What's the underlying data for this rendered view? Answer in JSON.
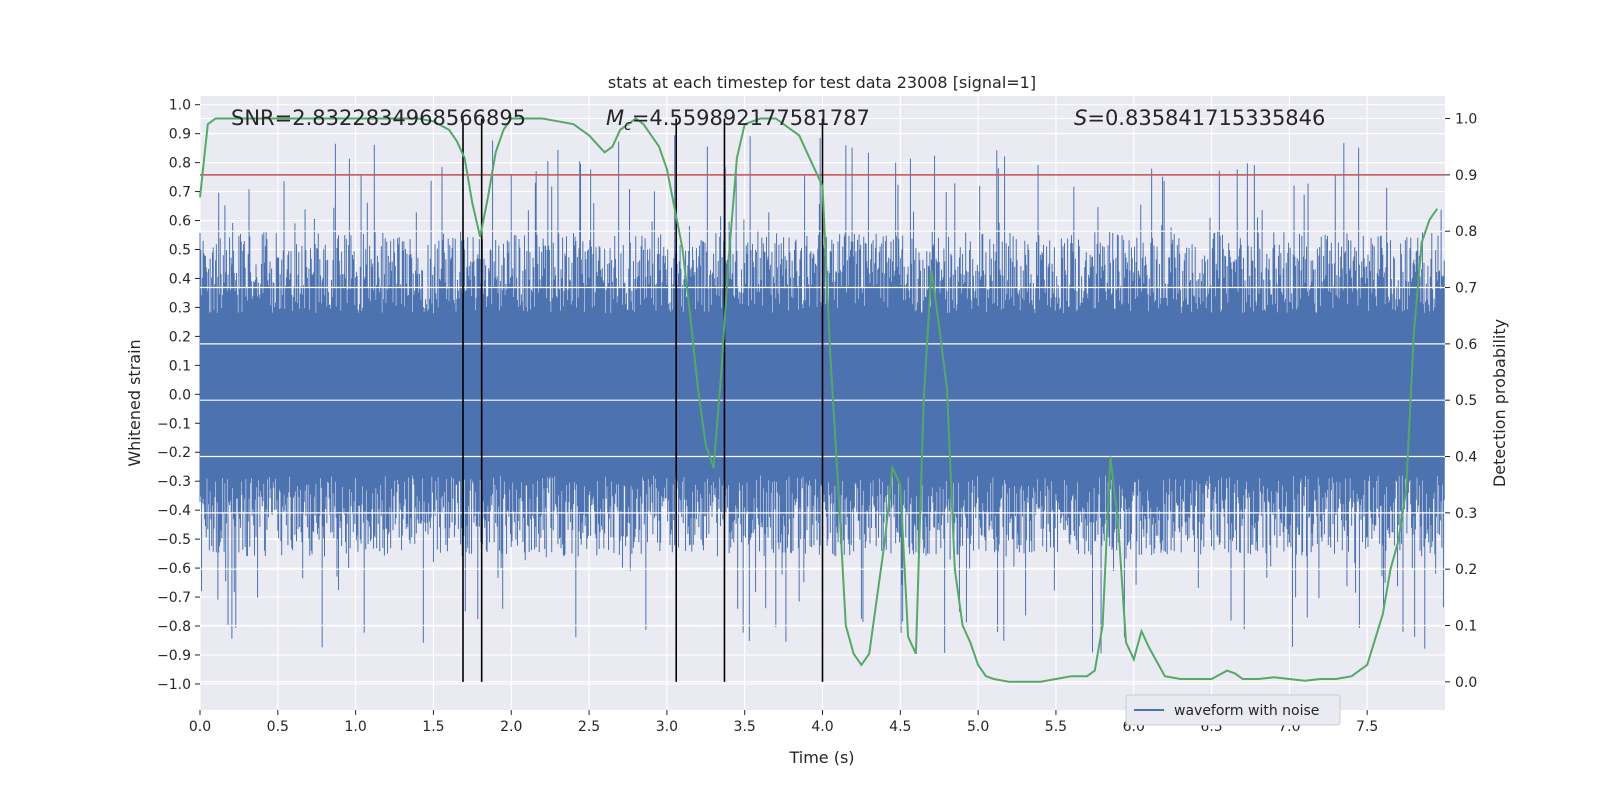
{
  "chart_data": {
    "type": "line",
    "title": "stats at each timestep for test data 23008 [signal=1]",
    "xlabel": "Time (s)",
    "ylabel_left": "Whitened strain",
    "ylabel_right": "Detection probability",
    "xlim": [
      0.0,
      8.0
    ],
    "ylim_left": [
      -1.09,
      1.03
    ],
    "ylim_right": [
      -0.05,
      1.04
    ],
    "x_ticks": [
      "0.0",
      "0.5",
      "1.0",
      "1.5",
      "2.0",
      "2.5",
      "3.0",
      "3.5",
      "4.0",
      "4.5",
      "5.0",
      "5.5",
      "6.0",
      "6.5",
      "7.0",
      "7.5"
    ],
    "y_ticks_left": [
      "1.0",
      "0.9",
      "0.8",
      "0.7",
      "0.6",
      "0.5",
      "0.4",
      "0.3",
      "0.2",
      "0.1",
      "0.0",
      "−0.1",
      "−0.2",
      "−0.3",
      "−0.4",
      "−0.5",
      "−0.6",
      "−0.7",
      "−0.8",
      "−0.9",
      "−1.0"
    ],
    "y_ticks_right": [
      "1.0",
      "0.9",
      "0.8",
      "0.7",
      "0.6",
      "0.5",
      "0.4",
      "0.3",
      "0.2",
      "0.1",
      "0.0"
    ],
    "grid": true,
    "legend": {
      "placement": "bottom-right",
      "entries": [
        "waveform with noise"
      ]
    },
    "annotations": {
      "snr": "SNR=2.8322834968566895",
      "mc_symbol": "M",
      "mc_sub": "c",
      "mc_value": "=4.559892177581787",
      "s_symbol": "S",
      "s_value": "=0.835841715335846"
    },
    "threshold": 0.9,
    "vertical_lines_x": [
      1.69,
      1.81,
      3.06,
      3.37,
      4.0
    ],
    "probability_series": {
      "x": [
        0.0,
        0.05,
        0.1,
        0.2,
        0.3,
        0.5,
        0.8,
        1.0,
        1.2,
        1.4,
        1.5,
        1.6,
        1.65,
        1.7,
        1.75,
        1.8,
        1.85,
        1.9,
        1.95,
        2.0,
        2.1,
        2.2,
        2.3,
        2.4,
        2.5,
        2.6,
        2.65,
        2.7,
        2.75,
        2.8,
        2.85,
        2.9,
        2.95,
        3.0,
        3.05,
        3.1,
        3.15,
        3.2,
        3.25,
        3.3,
        3.35,
        3.4,
        3.45,
        3.5,
        3.6,
        3.7,
        3.8,
        3.85,
        3.9,
        3.95,
        4.0,
        4.05,
        4.1,
        4.15,
        4.2,
        4.25,
        4.3,
        4.4,
        4.45,
        4.5,
        4.55,
        4.6,
        4.65,
        4.7,
        4.75,
        4.8,
        4.85,
        4.9,
        4.95,
        5.0,
        5.05,
        5.1,
        5.2,
        5.3,
        5.4,
        5.5,
        5.6,
        5.7,
        5.75,
        5.8,
        5.85,
        5.9,
        5.95,
        6.0,
        6.05,
        6.1,
        6.2,
        6.3,
        6.5,
        6.6,
        6.65,
        6.7,
        6.8,
        6.9,
        7.0,
        7.1,
        7.2,
        7.3,
        7.4,
        7.5,
        7.6,
        7.65,
        7.7,
        7.75,
        7.8,
        7.85,
        7.9,
        7.95
      ],
      "y": [
        0.86,
        0.99,
        1.0,
        1.0,
        1.0,
        1.0,
        1.0,
        1.0,
        1.0,
        1.0,
        0.995,
        0.98,
        0.96,
        0.93,
        0.85,
        0.79,
        0.86,
        0.94,
        0.98,
        1.0,
        1.0,
        1.0,
        0.995,
        0.99,
        0.97,
        0.94,
        0.95,
        0.98,
        0.99,
        1.0,
        0.99,
        0.97,
        0.95,
        0.91,
        0.84,
        0.77,
        0.65,
        0.52,
        0.42,
        0.38,
        0.55,
        0.76,
        0.93,
        0.99,
        1.0,
        1.0,
        0.98,
        0.97,
        0.94,
        0.91,
        0.88,
        0.58,
        0.35,
        0.1,
        0.05,
        0.03,
        0.05,
        0.25,
        0.38,
        0.35,
        0.08,
        0.05,
        0.5,
        0.73,
        0.63,
        0.52,
        0.2,
        0.1,
        0.07,
        0.03,
        0.01,
        0.005,
        0.0,
        0.0,
        0.0,
        0.005,
        0.01,
        0.01,
        0.02,
        0.1,
        0.4,
        0.28,
        0.07,
        0.04,
        0.09,
        0.06,
        0.01,
        0.005,
        0.005,
        0.02,
        0.015,
        0.005,
        0.005,
        0.008,
        0.005,
        0.002,
        0.005,
        0.005,
        0.01,
        0.03,
        0.12,
        0.2,
        0.25,
        0.34,
        0.62,
        0.78,
        0.82,
        0.84
      ]
    }
  }
}
